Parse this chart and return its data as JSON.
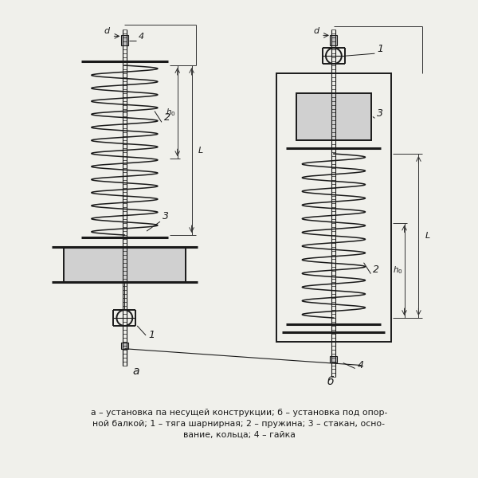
{
  "bg_color": "#f0f0eb",
  "line_color": "#1a1a1a",
  "caption_line1": "а – установка па несущей конструкции; б – установка под опор-",
  "caption_line2": "ной балкой; 1 – тяга шарнирная; 2 – пружина; 3 – стакан, осно-",
  "caption_line3": "вание, кольца; 4 – гайка",
  "label_a": "а",
  "label_b": "б"
}
